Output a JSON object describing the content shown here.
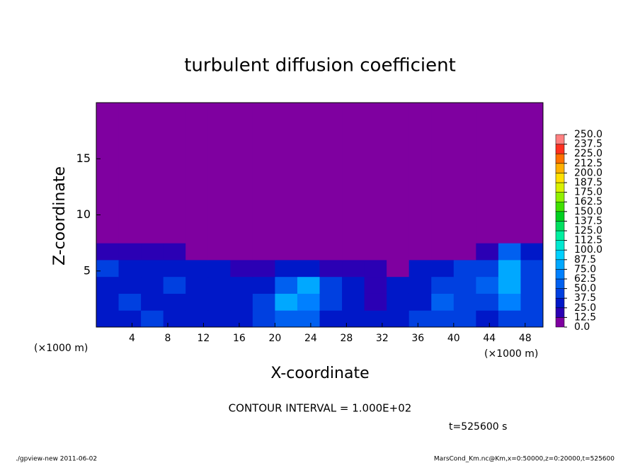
{
  "chart_data": {
    "type": "heatmap",
    "title": "turbulent diffusion coefficient",
    "xlabel": "X-coordinate",
    "ylabel": "Z-coordinate",
    "x_unit_left": "(×1000 m)",
    "x_unit_right": "(×1000 m)",
    "xlim": [
      0,
      50
    ],
    "ylim": [
      0,
      20
    ],
    "xticks": [
      4,
      8,
      12,
      16,
      20,
      24,
      28,
      32,
      36,
      40,
      44,
      48
    ],
    "yticks": [
      5,
      10,
      15
    ],
    "x_bins": [
      0,
      2.5,
      5,
      7.5,
      10,
      12.5,
      15,
      17.5,
      20,
      22.5,
      25,
      27.5,
      30,
      32.5,
      35,
      37.5,
      40,
      42.5,
      45,
      47.5,
      50
    ],
    "y_bins": [
      0,
      1.5,
      3,
      4.5,
      6,
      7.5,
      9,
      20
    ],
    "values": [
      [
        37,
        30,
        40,
        35,
        25,
        30,
        30,
        45,
        60,
        50,
        35,
        30,
        25,
        30,
        40,
        45,
        40,
        35,
        45,
        40
      ],
      [
        35,
        40,
        30,
        25,
        35,
        30,
        35,
        45,
        75,
        70,
        40,
        25,
        20,
        30,
        35,
        50,
        45,
        40,
        70,
        45
      ],
      [
        30,
        35,
        35,
        40,
        30,
        30,
        25,
        35,
        60,
        75,
        45,
        25,
        20,
        25,
        30,
        40,
        45,
        50,
        75,
        40
      ],
      [
        40,
        35,
        30,
        30,
        25,
        25,
        20,
        20,
        25,
        30,
        20,
        15,
        15,
        10,
        25,
        35,
        45,
        40,
        80,
        45
      ],
      [
        20,
        20,
        20,
        20,
        10,
        5,
        5,
        5,
        5,
        5,
        5,
        5,
        5,
        0,
        0,
        0,
        5,
        20,
        50,
        25
      ],
      [
        0,
        0,
        0,
        0,
        0,
        0,
        0,
        0,
        0,
        0,
        0,
        0,
        0,
        0,
        0,
        0,
        0,
        10,
        5,
        0
      ],
      [
        0,
        0,
        0,
        0,
        0,
        0,
        0,
        0,
        0,
        0,
        0,
        0,
        0,
        0,
        0,
        0,
        0,
        0,
        0,
        0
      ]
    ],
    "levels": [
      {
        "value": 0,
        "label": "0.0"
      },
      12.5,
      {
        "value": 25,
        "label": "25.0"
      },
      37.5,
      {
        "value": 50,
        "label": "50.0"
      },
      62.5,
      {
        "value": 75,
        "label": "75.0"
      },
      87.5,
      {
        "value": 100,
        "label": "100.0"
      },
      112.5,
      {
        "value": 125,
        "label": "125.0"
      },
      137.5,
      {
        "value": 150,
        "label": "150.0"
      },
      162.5,
      {
        "value": 175,
        "label": "175.0"
      },
      187.5,
      {
        "value": 200,
        "label": "200.0"
      },
      212.5,
      {
        "value": 225,
        "label": "225.0"
      },
      237.5,
      {
        "value": 250,
        "label": "250.0"
      }
    ],
    "colors": [
      "#7f00a0",
      "#2b00b4",
      "#0018c8",
      "#0040e0",
      "#0060f0",
      "#0080ff",
      "#00a8ff",
      "#00d0ff",
      "#00e8d0",
      "#00f0a0",
      "#00e060",
      "#00d020",
      "#40e000",
      "#90f000",
      "#d8f000",
      "#ffe000",
      "#ffb000",
      "#ff7000",
      "#ff3020",
      "#ff8080"
    ],
    "annotation": "CONTOUR INTERVAL = 1.000E+02",
    "time_label": "t=525600 s",
    "footer_left": "./gpview-new  2011-06-02",
    "footer_right": "MarsCond_Km.nc@Km,x=0:50000,z=0:20000,t=525600"
  }
}
